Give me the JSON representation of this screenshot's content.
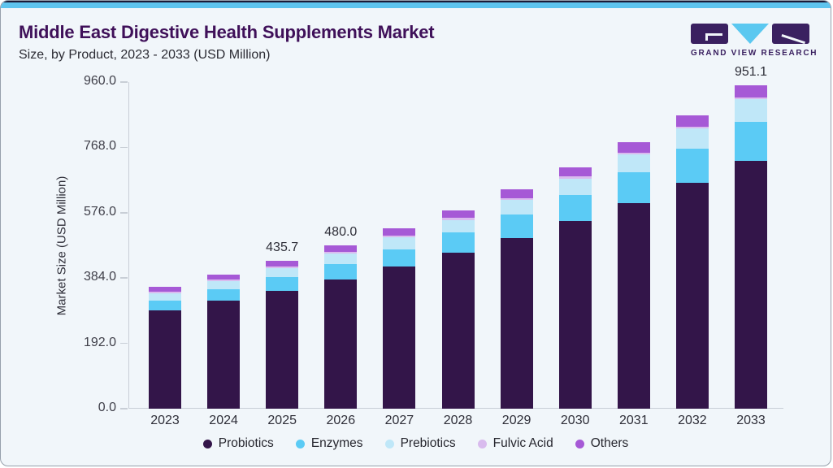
{
  "header": {
    "title": "Middle East Digestive Health Supplements Market",
    "subtitle": "Size, by Product, 2023 - 2033 (USD Million)",
    "logo_text": "GRAND VIEW RESEARCH"
  },
  "colors": {
    "topbar": "#5ec4ee",
    "card_bg": "#f1f6fa",
    "card_border": "#97a0ac",
    "top_edge": "#1b1b38",
    "title_text": "#3f1059",
    "subtitle_text": "#2b2b33",
    "axis_line": "#c8ced6",
    "tick_text": "#3f3f49",
    "label_text": "#2e2e38",
    "logo_purple": "#3a2060",
    "logo_cyan": "#5bc8f0"
  },
  "chart_data": {
    "type": "bar",
    "stacked": true,
    "title": "Middle East Digestive Health Supplements Market Size, by Product, 2023 - 2033 (USD Million)",
    "xlabel": "",
    "ylabel": "Market Size (USD Million)",
    "ylim": [
      0,
      960
    ],
    "yticks": [
      0,
      192,
      384,
      576,
      768,
      960
    ],
    "grid": false,
    "legend_position": "bottom",
    "categories": [
      "2023",
      "2024",
      "2025",
      "2026",
      "2027",
      "2028",
      "2029",
      "2030",
      "2031",
      "2032",
      "2033"
    ],
    "series": [
      {
        "name": "Probiotics",
        "color": "#331549",
        "values": [
          288.4,
          316.5,
          347.3,
          380.6,
          417.6,
          458.1,
          502.6,
          551.4,
          604.8,
          663.4,
          727.4
        ]
      },
      {
        "name": "Enzymes",
        "color": "#5bcbf5",
        "values": [
          28.7,
          33.3,
          38.5,
          44.4,
          51.2,
          58.9,
          67.7,
          77.6,
          88.9,
          101.6,
          116.0
        ]
      },
      {
        "name": "Prebiotics",
        "color": "#bfe7f8",
        "values": [
          22.2,
          24.8,
          27.6,
          30.8,
          34.3,
          38.2,
          42.6,
          47.5,
          52.9,
          58.9,
          65.6
        ]
      },
      {
        "name": "Fulvic Acid",
        "color": "#d9bbee",
        "values": [
          5.0,
          5.2,
          5.3,
          5.5,
          5.6,
          5.6,
          5.6,
          5.6,
          5.5,
          5.3,
          5.0
        ]
      },
      {
        "name": "Others",
        "color": "#a659d6",
        "values": [
          14.0,
          15.4,
          17.0,
          18.7,
          20.6,
          22.8,
          25.1,
          27.7,
          30.5,
          33.6,
          37.1
        ]
      }
    ],
    "totals": [
      358.3,
      395.2,
      435.7,
      480.0,
      529.3,
      583.6,
      643.6,
      709.8,
      782.6,
      862.8,
      951.1
    ],
    "totals_labeled": {
      "2025": "435.7",
      "2026": "480.0",
      "2033": "951.1"
    },
    "ytick_decimals": 1
  },
  "legend": {
    "items": [
      {
        "label": "Probiotics",
        "color": "#331549"
      },
      {
        "label": "Enzymes",
        "color": "#5bcbf5"
      },
      {
        "label": "Prebiotics",
        "color": "#bfe7f8"
      },
      {
        "label": "Fulvic Acid",
        "color": "#d9bbee"
      },
      {
        "label": "Others",
        "color": "#a659d6"
      }
    ]
  }
}
